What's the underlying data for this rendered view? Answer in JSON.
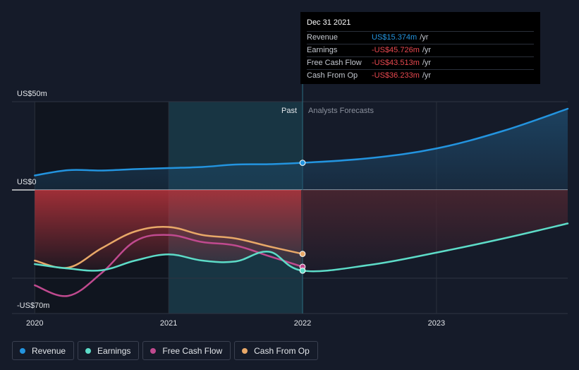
{
  "chart_data": {
    "type": "line",
    "y_axis_labels": [
      "US$50m",
      "US$0",
      "-US$70m"
    ],
    "ylim": [
      -70,
      50
    ],
    "x_ticks": [
      "2020",
      "2021",
      "2022",
      "2023"
    ],
    "x_tick_values": [
      2020,
      2021,
      2022,
      2023
    ],
    "xlim": [
      2019.83,
      2023.98
    ],
    "past_label": "Past",
    "forecast_label": "Analysts Forecasts",
    "divider_x": 2022.0,
    "past_band_start": 2021.0,
    "series": [
      {
        "name": "Revenue",
        "color": "#2394df",
        "fill": true,
        "points": [
          [
            2020.0,
            8.2
          ],
          [
            2020.25,
            11.2
          ],
          [
            2020.5,
            11.0
          ],
          [
            2020.75,
            11.8
          ],
          [
            2021.0,
            12.4
          ],
          [
            2021.25,
            13.0
          ],
          [
            2021.5,
            14.4
          ],
          [
            2021.75,
            14.6
          ],
          [
            2022.0,
            15.374
          ],
          [
            2022.5,
            18.0
          ],
          [
            2023.0,
            23.5
          ],
          [
            2023.5,
            33.5
          ],
          [
            2023.98,
            46.0
          ]
        ]
      },
      {
        "name": "Earnings",
        "color": "#5ddcc8",
        "fill": false,
        "points": [
          [
            2020.0,
            -42.0
          ],
          [
            2020.25,
            -44.5
          ],
          [
            2020.5,
            -45.5
          ],
          [
            2020.75,
            -40.0
          ],
          [
            2021.0,
            -36.5
          ],
          [
            2021.25,
            -40.0
          ],
          [
            2021.5,
            -40.5
          ],
          [
            2021.75,
            -35.0
          ],
          [
            2022.0,
            -45.726
          ],
          [
            2022.5,
            -42.5
          ],
          [
            2023.0,
            -35.5
          ],
          [
            2023.5,
            -27.5
          ],
          [
            2023.98,
            -19.0
          ]
        ]
      },
      {
        "name": "Free Cash Flow",
        "color": "#c04a8f",
        "fill": false,
        "points": [
          [
            2020.0,
            -54.0
          ],
          [
            2020.25,
            -60.0
          ],
          [
            2020.5,
            -47.0
          ],
          [
            2020.75,
            -29.0
          ],
          [
            2021.0,
            -25.5
          ],
          [
            2021.25,
            -29.5
          ],
          [
            2021.5,
            -31.5
          ],
          [
            2021.75,
            -37.5
          ],
          [
            2022.0,
            -43.513
          ]
        ]
      },
      {
        "name": "Cash From Op",
        "color": "#e8a868",
        "fill": false,
        "points": [
          [
            2020.0,
            -40.0
          ],
          [
            2020.25,
            -44.0
          ],
          [
            2020.5,
            -33.0
          ],
          [
            2020.75,
            -23.5
          ],
          [
            2021.0,
            -21.0
          ],
          [
            2021.25,
            -25.5
          ],
          [
            2021.5,
            -27.5
          ],
          [
            2021.75,
            -32.0
          ],
          [
            2022.0,
            -36.233
          ]
        ]
      }
    ],
    "tooltip": {
      "date": "Dec 31 2021",
      "unit": "/yr",
      "rows": [
        {
          "label": "Revenue",
          "value": "US$15.374m",
          "color": "#2394df"
        },
        {
          "label": "Earnings",
          "value": "-US$45.726m",
          "color": "#e8484f"
        },
        {
          "label": "Free Cash Flow",
          "value": "-US$43.513m",
          "color": "#e8484f"
        },
        {
          "label": "Cash From Op",
          "value": "-US$36.233m",
          "color": "#e8484f"
        }
      ]
    },
    "legend": [
      {
        "label": "Revenue",
        "color": "#2394df"
      },
      {
        "label": "Earnings",
        "color": "#5ddcc8"
      },
      {
        "label": "Free Cash Flow",
        "color": "#c04a8f"
      },
      {
        "label": "Cash From Op",
        "color": "#e8a868"
      }
    ]
  }
}
